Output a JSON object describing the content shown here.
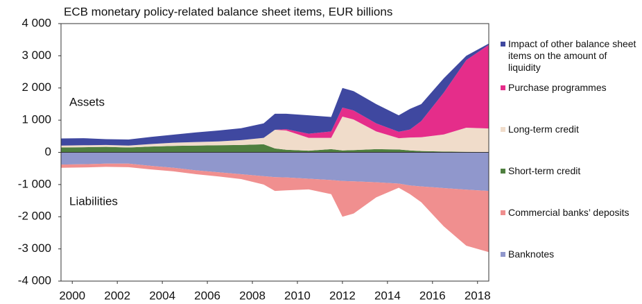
{
  "chart_data": {
    "type": "area",
    "title": "ECB monetary policy-related balance sheet items, EUR billions",
    "annotations": [
      "Assets",
      "Liabilities"
    ],
    "x": [
      1999.5,
      2000.5,
      2001.5,
      2002.5,
      2003.5,
      2004.5,
      2005.5,
      2006.5,
      2007.5,
      2008.5,
      2009,
      2009.5,
      2010.5,
      2011.5,
      2012,
      2012.5,
      2013.5,
      2014.5,
      2015,
      2015.5,
      2016.5,
      2017.5,
      2018.5
    ],
    "series": [
      {
        "name": "Short-term credit",
        "color": "#4f7f3f",
        "values": [
          150,
          160,
          170,
          150,
          180,
          200,
          210,
          220,
          230,
          250,
          120,
          80,
          50,
          100,
          60,
          70,
          100,
          90,
          60,
          40,
          25,
          15,
          10
        ]
      },
      {
        "name": "Long-term credit",
        "color": "#f0dcca",
        "values": [
          60,
          60,
          60,
          60,
          80,
          100,
          110,
          120,
          150,
          200,
          580,
          600,
          400,
          350,
          1050,
          950,
          550,
          350,
          400,
          430,
          530,
          750,
          730
        ]
      },
      {
        "name": "Purchase programmes",
        "color": "#e52d8a",
        "values": [
          0,
          0,
          0,
          0,
          0,
          0,
          0,
          0,
          0,
          0,
          0,
          40,
          130,
          200,
          280,
          280,
          250,
          200,
          250,
          500,
          1300,
          2100,
          2600
        ]
      },
      {
        "name": "Impact of other balance sheet items on the amount of liquidity",
        "color": "#3f48a0",
        "values": [
          220,
          220,
          180,
          190,
          220,
          250,
          300,
          340,
          370,
          450,
          500,
          480,
          570,
          450,
          610,
          600,
          600,
          510,
          640,
          530,
          445,
          135,
          40
        ]
      },
      {
        "name": "Banknotes",
        "color": "#9097cc",
        "values": [
          -380,
          -370,
          -350,
          -350,
          -420,
          -480,
          -560,
          -620,
          -680,
          -740,
          -770,
          -780,
          -820,
          -860,
          -890,
          -900,
          -930,
          -970,
          -1030,
          -1060,
          -1110,
          -1160,
          -1200
        ]
      },
      {
        "name": "Commercial banks’ deposits",
        "color": "#f08f8f",
        "values": [
          -100,
          -100,
          -100,
          -110,
          -110,
          -110,
          -120,
          -130,
          -150,
          -260,
          -430,
          -400,
          -330,
          -440,
          -1110,
          -1000,
          -470,
          -130,
          -270,
          -490,
          -1190,
          -1740,
          -1900
        ]
      }
    ],
    "xlim": [
      1999.5,
      2018.5
    ],
    "xticks": [
      2000,
      2002,
      2004,
      2006,
      2008,
      2010,
      2012,
      2014,
      2016,
      2018
    ],
    "ylim": [
      -4000,
      4000
    ],
    "yticks": [
      {
        "value": -4000,
        "label": "-4 000"
      },
      {
        "value": -3000,
        "label": "-3 000"
      },
      {
        "value": -2000,
        "label": "-2 000"
      },
      {
        "value": -1000,
        "label": "-1 000"
      },
      0,
      {
        "value": 1000,
        "label": "1 000"
      },
      {
        "value": 2000,
        "label": "2 000"
      },
      {
        "value": 3000,
        "label": "3 000"
      },
      {
        "value": 4000,
        "label": "4 000"
      }
    ],
    "grid": false
  }
}
